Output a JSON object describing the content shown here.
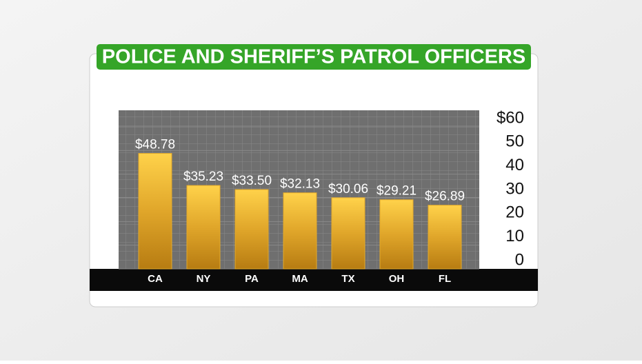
{
  "chart_data": {
    "type": "bar",
    "title": "POLICE AND SHERIFF’S PATROL OFFICERS",
    "categories": [
      "CA",
      "NY",
      "PA",
      "MA",
      "TX",
      "OH",
      "FL"
    ],
    "values": [
      48.78,
      35.23,
      33.5,
      32.13,
      30.06,
      29.21,
      26.89
    ],
    "value_labels": [
      "$48.78",
      "$35.23",
      "$33.50",
      "$32.13",
      "$30.06",
      "$29.21",
      "$26.89"
    ],
    "color": "#e3a92a",
    "ylim": [
      0,
      60
    ],
    "yticks": [
      0,
      10,
      20,
      30,
      40,
      50,
      {
        "value": 60,
        "label": "$60"
      }
    ],
    "grid": true
  }
}
